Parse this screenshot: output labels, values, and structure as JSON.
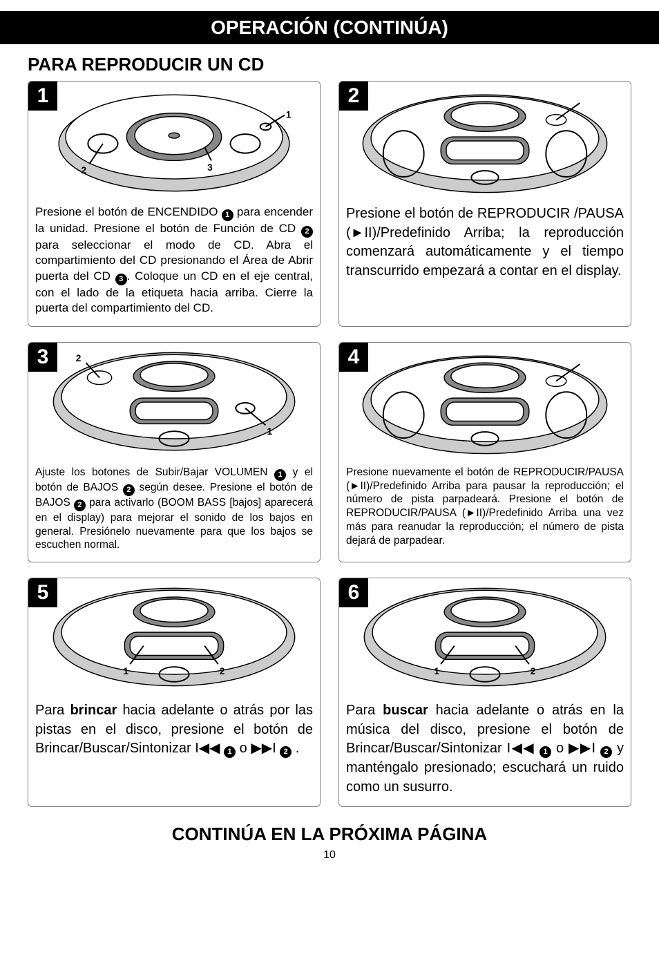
{
  "header": {
    "title": "OPERACIÓN (CONTINÚA)"
  },
  "section": {
    "title": "PARA REPRODUCIR UN CD"
  },
  "steps": [
    {
      "num": "1",
      "callouts": [
        "1",
        "2",
        "3"
      ],
      "text": "Presione el botón de ENCENDIDO ❶ para encender la unidad. Presione el botón de Función de CD ❷ para seleccionar el modo de CD. Abra el compartimiento del CD presionando el Área de Abrir puerta del CD ❸. Coloque un CD en el eje central, con el lado de la etiqueta hacia arriba. Cierre la puerta del compartimiento del CD.",
      "size": "md"
    },
    {
      "num": "2",
      "callouts": [],
      "text": "Presione el botón de REPRODUCIR /PAUSA (►II)/Predefinido Arriba; la reproducción comenzará automáticamente y el tiempo transcurrido empezará a contar en el display.",
      "size": "lg"
    },
    {
      "num": "3",
      "callouts": [
        "1",
        "2"
      ],
      "text": "Ajuste los botones de Subir/Bajar VOLUMEN ❶ y el botón de BAJOS ❷ según desee. Presione el botón de BAJOS ❷ para activarlo (BOOM BASS [bajos] aparecerá en el display) para mejorar el sonido de los bajos en general. Presiónelo nuevamente para que los bajos se escuchen normal.",
      "size": "sm"
    },
    {
      "num": "4",
      "callouts": [],
      "text": "Presione nuevamente el botón de REPRODUCIR/PAUSA (►II)/Predefinido Arriba para pausar la reproducción; el número de pista parpadeará. Presione el botón de REPRODUCIR/PAUSA (►II)/Predefinido Arriba una vez más para reanudar la reproducción; el número de pista dejará de parpadear.",
      "size": "sm"
    },
    {
      "num": "5",
      "callouts": [
        "1",
        "2"
      ],
      "text": "Para <b>brincar</b> hacia adelante o atrás por las pistas en el disco, presione el botón de Brincar/Buscar/Sintonizar I◀◀ ❶ o ▶▶I ❷ .",
      "size": "lg"
    },
    {
      "num": "6",
      "callouts": [
        "1",
        "2"
      ],
      "text": "Para <b>buscar</b>  hacia adelante o atrás en la música del disco, presione el botón de Brincar/Buscar/Sintonizar I◀◀ ❶ o ▶▶I ❷ y manténgalo presionado; escuchará un ruido como un susurro.",
      "size": "lg"
    }
  ],
  "footer": {
    "continue": "CONTINÚA EN LA PRÓXIMA PÁGINA",
    "page": "10"
  }
}
